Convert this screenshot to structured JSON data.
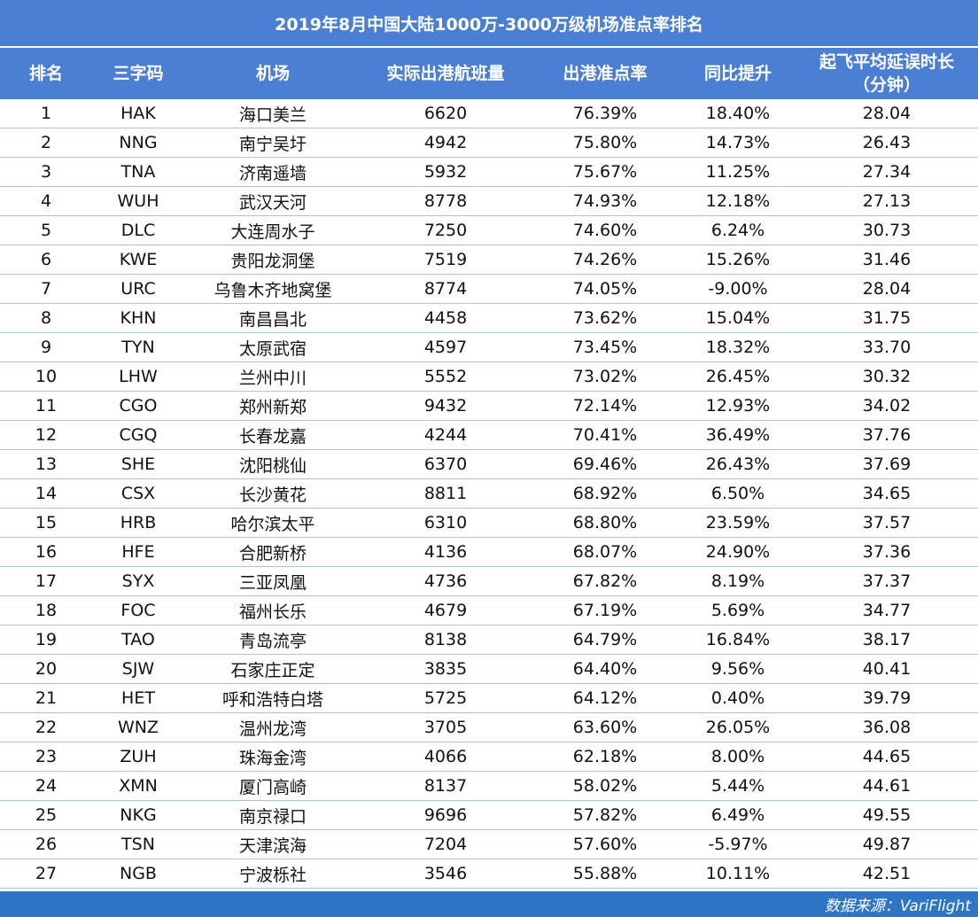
{
  "title": "2019年8月中国大陆1000万-3000万级机场准点率排名",
  "headers": {
    "rank": "排名",
    "code": "三字码",
    "airport": "机场",
    "flights": "实际出港航班量",
    "ontime": "出港准点率",
    "yoy": "同比提升",
    "delay_line1": "起飞平均延误时长",
    "delay_line2": "（分钟）"
  },
  "rows": [
    {
      "rank": "1",
      "code": "HAK",
      "airport": "海口美兰",
      "flights": "6620",
      "ontime": "76.39%",
      "yoy": "18.40%",
      "delay": "28.04"
    },
    {
      "rank": "2",
      "code": "NNG",
      "airport": "南宁吴圩",
      "flights": "4942",
      "ontime": "75.80%",
      "yoy": "14.73%",
      "delay": "26.43"
    },
    {
      "rank": "3",
      "code": "TNA",
      "airport": "济南遥墙",
      "flights": "5932",
      "ontime": "75.67%",
      "yoy": "11.25%",
      "delay": "27.34"
    },
    {
      "rank": "4",
      "code": "WUH",
      "airport": "武汉天河",
      "flights": "8778",
      "ontime": "74.93%",
      "yoy": "12.18%",
      "delay": "27.13"
    },
    {
      "rank": "5",
      "code": "DLC",
      "airport": "大连周水子",
      "flights": "7250",
      "ontime": "74.60%",
      "yoy": "6.24%",
      "delay": "30.73"
    },
    {
      "rank": "6",
      "code": "KWE",
      "airport": "贵阳龙洞堡",
      "flights": "7519",
      "ontime": "74.26%",
      "yoy": "15.26%",
      "delay": "31.46"
    },
    {
      "rank": "7",
      "code": "URC",
      "airport": "乌鲁木齐地窝堡",
      "flights": "8774",
      "ontime": "74.05%",
      "yoy": "-9.00%",
      "delay": "28.04"
    },
    {
      "rank": "8",
      "code": "KHN",
      "airport": "南昌昌北",
      "flights": "4458",
      "ontime": "73.62%",
      "yoy": "15.04%",
      "delay": "31.75"
    },
    {
      "rank": "9",
      "code": "TYN",
      "airport": "太原武宿",
      "flights": "4597",
      "ontime": "73.45%",
      "yoy": "18.32%",
      "delay": "33.70"
    },
    {
      "rank": "10",
      "code": "LHW",
      "airport": "兰州中川",
      "flights": "5552",
      "ontime": "73.02%",
      "yoy": "26.45%",
      "delay": "30.32"
    },
    {
      "rank": "11",
      "code": "CGO",
      "airport": "郑州新郑",
      "flights": "9432",
      "ontime": "72.14%",
      "yoy": "12.93%",
      "delay": "34.02"
    },
    {
      "rank": "12",
      "code": "CGQ",
      "airport": "长春龙嘉",
      "flights": "4244",
      "ontime": "70.41%",
      "yoy": "36.49%",
      "delay": "37.76"
    },
    {
      "rank": "13",
      "code": "SHE",
      "airport": "沈阳桃仙",
      "flights": "6370",
      "ontime": "69.46%",
      "yoy": "26.43%",
      "delay": "37.69"
    },
    {
      "rank": "14",
      "code": "CSX",
      "airport": "长沙黄花",
      "flights": "8811",
      "ontime": "68.92%",
      "yoy": "6.50%",
      "delay": "34.65"
    },
    {
      "rank": "15",
      "code": "HRB",
      "airport": "哈尔滨太平",
      "flights": "6310",
      "ontime": "68.80%",
      "yoy": "23.59%",
      "delay": "37.57"
    },
    {
      "rank": "16",
      "code": "HFE",
      "airport": "合肥新桥",
      "flights": "4136",
      "ontime": "68.07%",
      "yoy": "24.90%",
      "delay": "37.36"
    },
    {
      "rank": "17",
      "code": "SYX",
      "airport": "三亚凤凰",
      "flights": "4736",
      "ontime": "67.82%",
      "yoy": "8.19%",
      "delay": "37.37"
    },
    {
      "rank": "18",
      "code": "FOC",
      "airport": "福州长乐",
      "flights": "4679",
      "ontime": "67.19%",
      "yoy": "5.69%",
      "delay": "34.77"
    },
    {
      "rank": "19",
      "code": "TAO",
      "airport": "青岛流亭",
      "flights": "8138",
      "ontime": "64.79%",
      "yoy": "16.84%",
      "delay": "38.17"
    },
    {
      "rank": "20",
      "code": "SJW",
      "airport": "石家庄正定",
      "flights": "3835",
      "ontime": "64.40%",
      "yoy": "9.56%",
      "delay": "40.41"
    },
    {
      "rank": "21",
      "code": "HET",
      "airport": "呼和浩特白塔",
      "flights": "5725",
      "ontime": "64.12%",
      "yoy": "0.40%",
      "delay": "39.79"
    },
    {
      "rank": "22",
      "code": "WNZ",
      "airport": "温州龙湾",
      "flights": "3705",
      "ontime": "63.60%",
      "yoy": "26.05%",
      "delay": "36.08"
    },
    {
      "rank": "23",
      "code": "ZUH",
      "airport": "珠海金湾",
      "flights": "4066",
      "ontime": "62.18%",
      "yoy": "8.00%",
      "delay": "44.65"
    },
    {
      "rank": "24",
      "code": "XMN",
      "airport": "厦门高崎",
      "flights": "8137",
      "ontime": "58.02%",
      "yoy": "5.44%",
      "delay": "44.61"
    },
    {
      "rank": "25",
      "code": "NKG",
      "airport": "南京禄口",
      "flights": "9696",
      "ontime": "57.82%",
      "yoy": "6.49%",
      "delay": "49.55"
    },
    {
      "rank": "26",
      "code": "TSN",
      "airport": "天津滨海",
      "flights": "7204",
      "ontime": "57.60%",
      "yoy": "-5.97%",
      "delay": "49.87"
    },
    {
      "rank": "27",
      "code": "NGB",
      "airport": "宁波栎社",
      "flights": "3546",
      "ontime": "55.88%",
      "yoy": "10.11%",
      "delay": "42.51"
    }
  ],
  "footer": "数据来源：VariFlight",
  "colors": {
    "header_bg": "#4a7fd4",
    "footer_bg": "#2f75c5",
    "row_border": "#a9c2e6"
  }
}
